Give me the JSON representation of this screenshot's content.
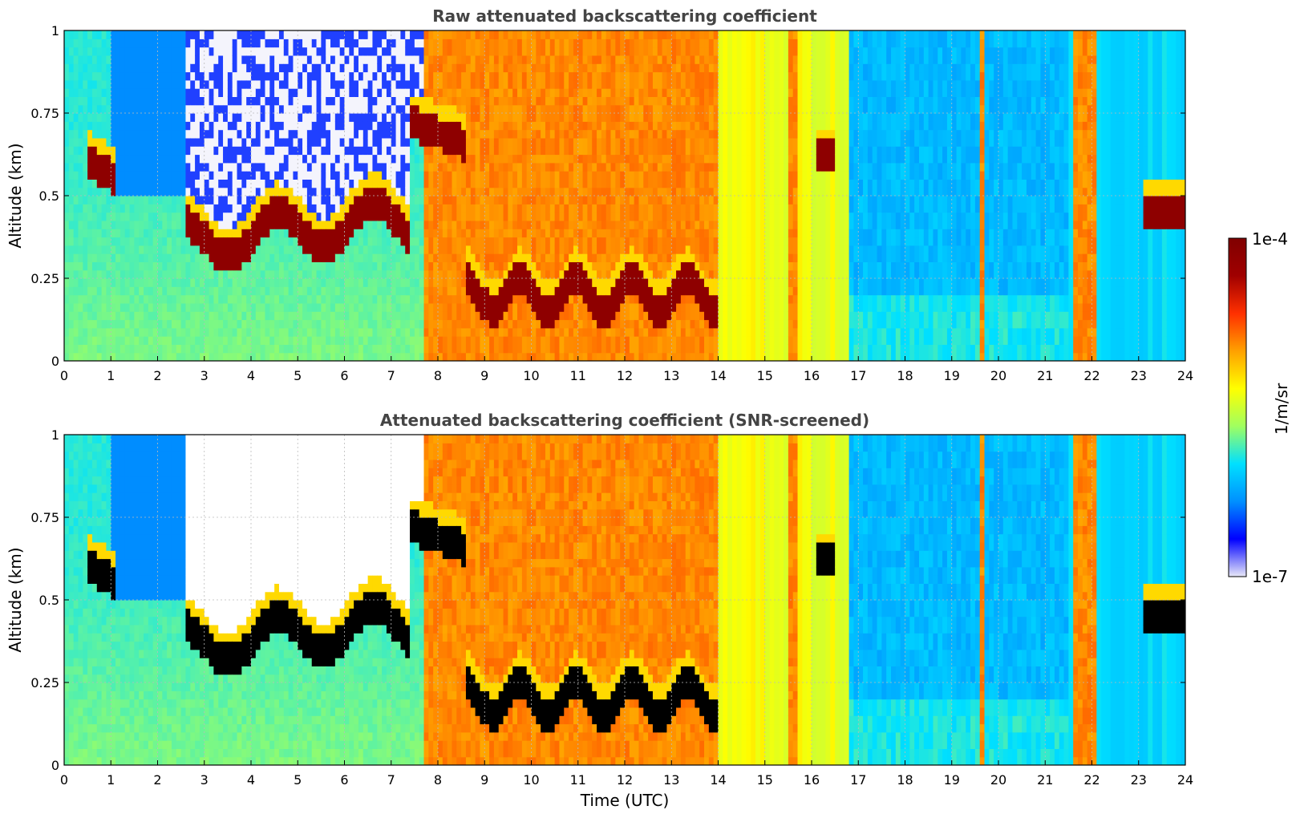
{
  "chart_data": [
    {
      "type": "heatmap",
      "title": "Raw attenuated backscattering coefficient",
      "ylabel": "Altitude (km)",
      "xlabel": "",
      "xlim": [
        0,
        24
      ],
      "ylim": [
        0,
        1
      ],
      "x_ticks": [
        "0",
        "1",
        "2",
        "3",
        "4",
        "5",
        "6",
        "7",
        "8",
        "9",
        "10",
        "11",
        "12",
        "13",
        "14",
        "15",
        "16",
        "17",
        "18",
        "19",
        "20",
        "21",
        "22",
        "23",
        "24"
      ],
      "y_ticks": [
        "0",
        "0.25",
        "0.5",
        "0.75",
        "1"
      ],
      "grid": true,
      "screened": false
    },
    {
      "type": "heatmap",
      "title": "Attenuated backscattering coefficient (SNR-screened)",
      "ylabel": "Altitude (km)",
      "xlabel": "Time (UTC)",
      "xlim": [
        0,
        24
      ],
      "ylim": [
        0,
        1
      ],
      "x_ticks": [
        "0",
        "1",
        "2",
        "3",
        "4",
        "5",
        "6",
        "7",
        "8",
        "9",
        "10",
        "11",
        "12",
        "13",
        "14",
        "15",
        "16",
        "17",
        "18",
        "19",
        "20",
        "21",
        "22",
        "23",
        "24"
      ],
      "y_ticks": [
        "0",
        "0.25",
        "0.5",
        "0.75",
        "1"
      ],
      "grid": true,
      "screened": true
    }
  ],
  "colorbar": {
    "label": "1/m/sr",
    "max_label": "1e-4",
    "min_label": "1e-7",
    "scale": "log",
    "colors": [
      "#e8e8f8",
      "#0000ff",
      "#0090ff",
      "#00e0ff",
      "#a0ff60",
      "#ffff00",
      "#ffa000",
      "#ff3000",
      "#a00000",
      "#800000"
    ]
  }
}
